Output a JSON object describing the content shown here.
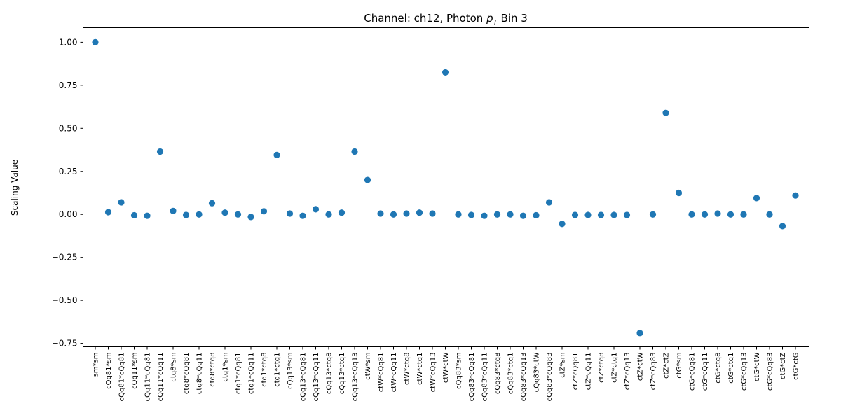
{
  "chart_data": {
    "type": "scatter",
    "title": "Channel: ch12, Photon p_T Bin 3",
    "title_parts": {
      "main": "Channel: ch12, Photon ",
      "var": "p",
      "sub": "T",
      "end": " Bin 3"
    },
    "xlabel": "",
    "ylabel": "Scaling Value",
    "ylim": [
      -0.77,
      1.085
    ],
    "yticks": [
      -0.75,
      -0.5,
      -0.25,
      0.0,
      0.25,
      0.5,
      0.75,
      1.0
    ],
    "ytick_labels": [
      "−0.75",
      "−0.50",
      "−0.25",
      "0.00",
      "0.25",
      "0.50",
      "0.75",
      "1.00"
    ],
    "marker_color": "#1f77b4",
    "grid": false,
    "categories": [
      "sm*sm",
      "cQq81*sm",
      "cQq81*cQq81",
      "cQq11*sm",
      "cQq11*cQq81",
      "cQq11*cQq11",
      "ctq8*sm",
      "ctq8*cQq81",
      "ctq8*cQq11",
      "ctq8*ctq8",
      "ctq1*sm",
      "ctq1*cQq81",
      "ctq1*cQq11",
      "ctq1*ctq8",
      "ctq1*ctq1",
      "cQq13*sm",
      "cQq13*cQq81",
      "cQq13*cQq11",
      "cQq13*ctq8",
      "cQq13*ctq1",
      "cQq13*cQq13",
      "ctW*sm",
      "ctW*cQq81",
      "ctW*cQq11",
      "ctW*ctq8",
      "ctW*ctq1",
      "ctW*cQq13",
      "ctW*ctW",
      "cQq83*sm",
      "cQq83*cQq81",
      "cQq83*cQq11",
      "cQq83*ctq8",
      "cQq83*ctq1",
      "cQq83*cQq13",
      "cQq83*ctW",
      "cQq83*cQq83",
      "ctZ*sm",
      "ctZ*cQq81",
      "ctZ*cQq11",
      "ctZ*ctq8",
      "ctZ*ctq1",
      "ctZ*cQq13",
      "ctZ*ctW",
      "ctZ*cQq83",
      "ctZ*ctZ",
      "ctG*sm",
      "ctG*cQq81",
      "ctG*cQq11",
      "ctG*ctq8",
      "ctG*ctq1",
      "ctG*cQq13",
      "ctG*ctW",
      "ctG*cQq83",
      "ctG*ctZ",
      "ctG*ctG"
    ],
    "values": [
      1.0,
      0.013,
      0.07,
      -0.005,
      -0.008,
      0.365,
      0.02,
      -0.003,
      0.0,
      0.065,
      0.01,
      0.0,
      -0.015,
      0.018,
      0.345,
      0.005,
      -0.008,
      0.03,
      0.0,
      0.01,
      0.365,
      0.2,
      0.005,
      0.0,
      0.005,
      0.01,
      0.005,
      0.825,
      0.0,
      -0.003,
      -0.008,
      0.0,
      0.0,
      -0.008,
      -0.005,
      0.07,
      -0.055,
      -0.003,
      -0.003,
      -0.003,
      -0.003,
      -0.003,
      -0.69,
      0.0,
      0.59,
      0.125,
      0.0,
      0.0,
      0.005,
      0.0,
      0.0,
      0.095,
      0.0,
      -0.068,
      0.11
    ]
  }
}
